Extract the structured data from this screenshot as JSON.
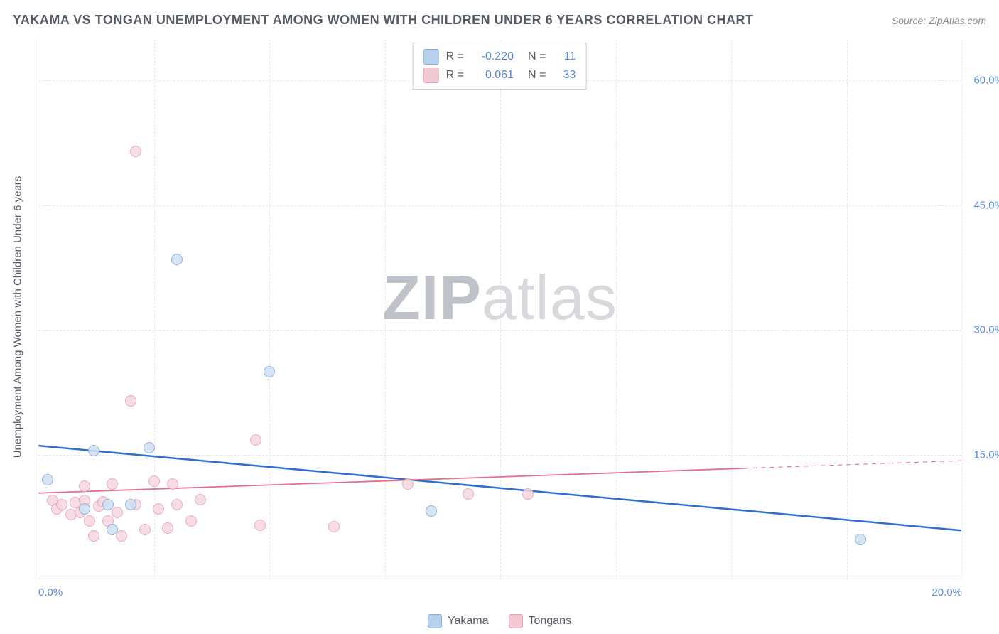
{
  "title": "YAKAMA VS TONGAN UNEMPLOYMENT AMONG WOMEN WITH CHILDREN UNDER 6 YEARS CORRELATION CHART",
  "source": "Source: ZipAtlas.com",
  "watermark": {
    "zip": "ZIP",
    "atlas": "atlas"
  },
  "y_axis_label": "Unemployment Among Women with Children Under 6 years",
  "chart": {
    "type": "scatter",
    "background_color": "#ffffff",
    "grid_color": "#e6e7ea",
    "axis_color": "#dcdde1",
    "tick_label_color": "#5b89d4",
    "xlim": [
      0,
      20
    ],
    "ylim": [
      0,
      65
    ],
    "x_ticks_label_positions": {
      "0.0%": 0,
      "20.0%": 20
    },
    "y_ticks": [
      15,
      30,
      45,
      60
    ],
    "x_gridlines": [
      2.5,
      5,
      7.5,
      10,
      12.5,
      15,
      17.5,
      20
    ],
    "y_gridlines": [
      15,
      30,
      45,
      60
    ],
    "marker_radius": 8,
    "marker_stroke_width": 1.2,
    "series": [
      {
        "id": "yakama",
        "label": "Yakama",
        "fill": "#cfe0f2",
        "stroke": "#7aa8d8",
        "swatch_fill": "#b7d0ec",
        "swatch_stroke": "#88afd8",
        "R": "-0.220",
        "N": "11",
        "points": [
          [
            0.2,
            12.0
          ],
          [
            1.0,
            8.5
          ],
          [
            1.2,
            15.5
          ],
          [
            1.5,
            9.0
          ],
          [
            1.6,
            6.0
          ],
          [
            2.0,
            9.0
          ],
          [
            2.4,
            15.8
          ],
          [
            3.0,
            38.5
          ],
          [
            5.0,
            25.0
          ],
          [
            8.5,
            8.2
          ],
          [
            17.8,
            4.8
          ]
        ],
        "trend": {
          "x1": 0,
          "y1": 16.0,
          "x2": 20,
          "y2": 5.8,
          "solid_until_x": 20,
          "color": "#2e6fd1",
          "width": 2.5
        }
      },
      {
        "id": "tongans",
        "label": "Tongans",
        "fill": "#f6d7df",
        "stroke": "#e49fb3",
        "swatch_fill": "#f3c9d4",
        "swatch_stroke": "#e49fb3",
        "R": "0.061",
        "N": "33",
        "points": [
          [
            0.3,
            9.5
          ],
          [
            0.4,
            8.5
          ],
          [
            0.5,
            9.0
          ],
          [
            0.7,
            7.8
          ],
          [
            0.8,
            9.2
          ],
          [
            0.9,
            8.0
          ],
          [
            1.0,
            9.5
          ],
          [
            1.0,
            11.2
          ],
          [
            1.1,
            7.0
          ],
          [
            1.2,
            5.2
          ],
          [
            1.3,
            8.8
          ],
          [
            1.4,
            9.3
          ],
          [
            1.5,
            7.0
          ],
          [
            1.6,
            11.5
          ],
          [
            1.7,
            8.0
          ],
          [
            1.8,
            5.2
          ],
          [
            2.0,
            21.5
          ],
          [
            2.1,
            9.0
          ],
          [
            2.1,
            51.5
          ],
          [
            2.3,
            6.0
          ],
          [
            2.5,
            11.8
          ],
          [
            2.6,
            8.5
          ],
          [
            2.8,
            6.2
          ],
          [
            2.9,
            11.5
          ],
          [
            3.0,
            9.0
          ],
          [
            3.3,
            7.0
          ],
          [
            3.5,
            9.6
          ],
          [
            4.7,
            16.8
          ],
          [
            4.8,
            6.5
          ],
          [
            6.4,
            6.3
          ],
          [
            8.0,
            11.5
          ],
          [
            9.3,
            10.3
          ],
          [
            10.6,
            10.3
          ]
        ],
        "trend": {
          "x1": 0,
          "y1": 10.3,
          "x2": 20,
          "y2": 14.2,
          "solid_until_x": 15.3,
          "color": "#e36f92",
          "width": 1.8
        }
      }
    ]
  },
  "legend_top": {
    "r_label": "R =",
    "n_label": "N ="
  },
  "bottom_legend": {
    "items": [
      "yakama",
      "tongans"
    ]
  }
}
